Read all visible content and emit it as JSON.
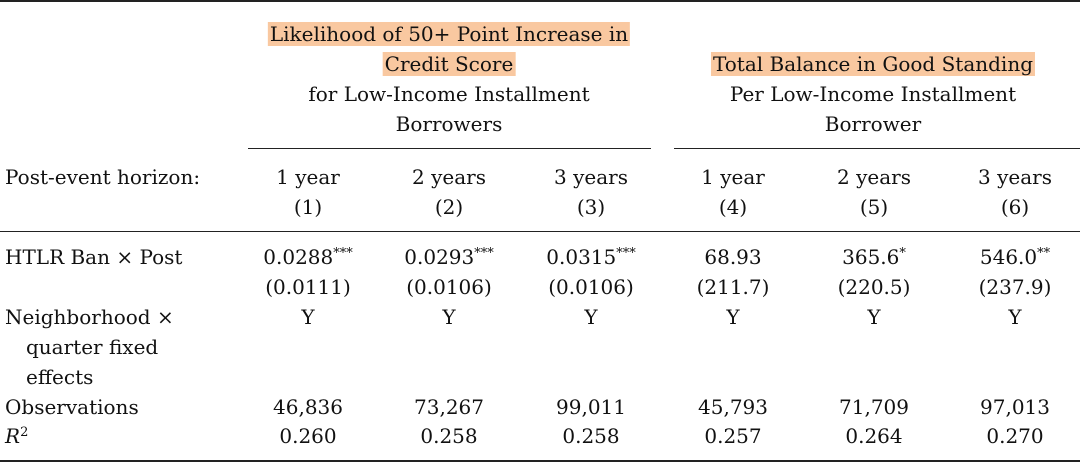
{
  "panel_a": {
    "title_line1": "Likelihood of 50+ Point Increase in",
    "title_line2": "Credit Score",
    "subtitle_line1": "for Low-Income Installment",
    "subtitle_line2": "Borrowers"
  },
  "panel_b": {
    "title_line1": "Total Balance in Good Standing",
    "subtitle_line1": "Per Low-Income Installment",
    "subtitle_line2": "Borrower"
  },
  "horizon_label": "Post-event horizon:",
  "columns": [
    {
      "horizon": "1 year",
      "num": "(1)"
    },
    {
      "horizon": "2 years",
      "num": "(2)"
    },
    {
      "horizon": "3 years",
      "num": "(3)"
    },
    {
      "horizon": "1 year",
      "num": "(4)"
    },
    {
      "horizon": "2 years",
      "num": "(5)"
    },
    {
      "horizon": "3 years",
      "num": "(6)"
    }
  ],
  "rows": {
    "htlr": {
      "label": "HTLR Ban × Post",
      "coef": [
        "0.0288",
        "0.0293",
        "0.0315",
        "68.93",
        "365.6",
        "546.0"
      ],
      "stars": [
        "***",
        "***",
        "***",
        "",
        "*",
        "**"
      ],
      "se": [
        "(0.0111)",
        "(0.0106)",
        "(0.0106)",
        "(211.7)",
        "(220.5)",
        "(237.9)"
      ]
    },
    "fe": {
      "label_line1": "Neighborhood ×",
      "label_line2": "quarter fixed",
      "label_line3": "effects",
      "values": [
        "Y",
        "Y",
        "Y",
        "Y",
        "Y",
        "Y"
      ]
    },
    "obs": {
      "label": "Observations",
      "values": [
        "46,836",
        "73,267",
        "99,011",
        "45,793",
        "71,709",
        "97,013"
      ]
    },
    "r2": {
      "label_base": "R",
      "label_sup": "2",
      "values": [
        "0.260",
        "0.258",
        "0.258",
        "0.257",
        "0.264",
        "0.270"
      ]
    }
  }
}
